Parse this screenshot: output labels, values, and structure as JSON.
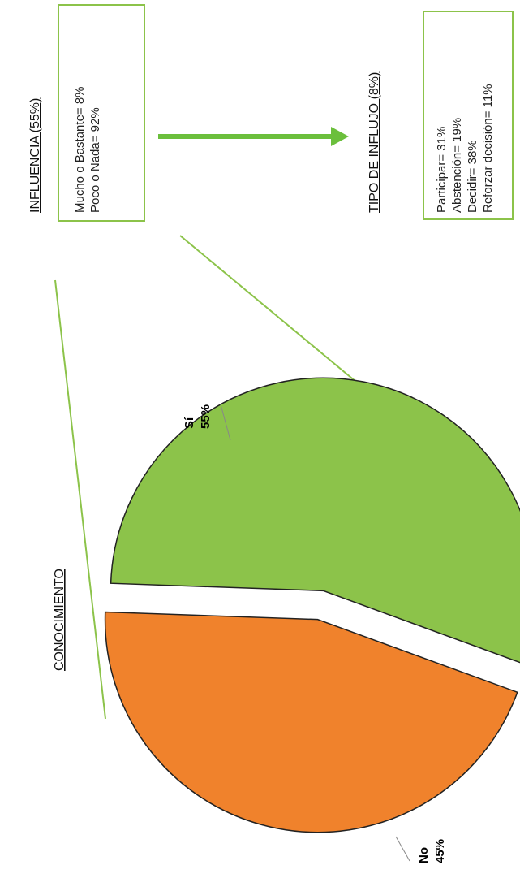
{
  "chart_data": {
    "type": "pie",
    "title": "CONOCIMIENTO",
    "categories": [
      "Sí",
      "No"
    ],
    "values": [
      55,
      45
    ],
    "unit": "%",
    "colors": {
      "Sí": "#8cc34a",
      "No": "#f0822c"
    },
    "exploded": true
  },
  "labels": {
    "si_name": "Sí",
    "si_value": "55%",
    "no_name": "No",
    "no_value": "45%"
  },
  "influence": {
    "title": "INFLUENCIA (55%)",
    "lines": [
      "Mucho o Bastante= 8%",
      "Poco o Nada= 92%"
    ]
  },
  "influx": {
    "title": "TIPO DE INFLUJO (8%)",
    "lines": [
      "Participar= 31%",
      "Abstención= 19%",
      "Decidir= 38%",
      "Reforzar decisión= 11%"
    ]
  },
  "colors": {
    "accent_green": "#8cc34a",
    "arrow_green": "#6bbf3c",
    "orange": "#f0822c"
  }
}
